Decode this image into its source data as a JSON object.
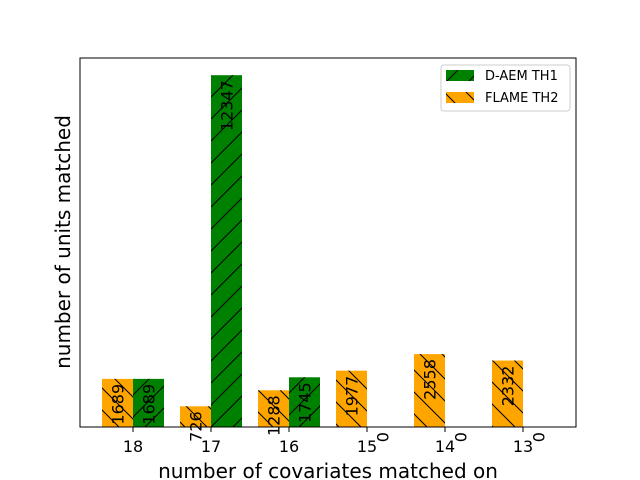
{
  "chart_data": {
    "type": "bar",
    "categories": [
      "18",
      "17",
      "16",
      "15",
      "14",
      "13"
    ],
    "series": [
      {
        "name": "FLAME TH2",
        "color": "#ffa500",
        "hatch": "backslash",
        "values": [
          1689,
          726,
          1288,
          1977,
          2558,
          2332
        ]
      },
      {
        "name": "D-AEM TH1",
        "color": "#008000",
        "hatch": "slash",
        "values": [
          1689,
          12347,
          1745,
          0,
          0,
          0
        ]
      }
    ],
    "xlabel": "number of covariates matched on",
    "ylabel": "number of units matched",
    "ylim": [
      0,
      12950
    ],
    "yticks_shown": false,
    "legend_placement": "top-right",
    "legend_order": [
      "D-AEM TH1",
      "FLAME TH2"
    ],
    "grid": false
  }
}
